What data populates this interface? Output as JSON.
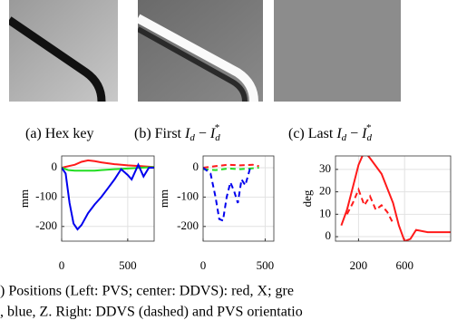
{
  "subcaptions": [
    {
      "text": "(a) Hex key"
    },
    {
      "text": "(b) First",
      "symbol": "I",
      "sub": "d",
      "op": "−",
      "sup": "*"
    },
    {
      "text": "(c) Last",
      "symbol": "I",
      "sub": "d",
      "op": "−",
      "sup": "*"
    }
  ],
  "chart_data": [
    {
      "type": "line",
      "y_label": "mm",
      "xlim": [
        0,
        700
      ],
      "ylim": [
        -250,
        40
      ],
      "xticks": [
        0,
        500
      ],
      "yticks": [
        -200,
        -100,
        0
      ],
      "grid": true,
      "series": [
        {
          "color": "#ff1a1a",
          "dashed": false,
          "x": [
            0,
            50,
            100,
            150,
            200,
            250,
            300,
            400,
            500,
            600,
            700
          ],
          "values": [
            0,
            5,
            10,
            20,
            25,
            22,
            18,
            12,
            8,
            5,
            2
          ]
        },
        {
          "color": "#22dd22",
          "dashed": false,
          "x": [
            0,
            50,
            100,
            150,
            200,
            250,
            300,
            400,
            500,
            600,
            700
          ],
          "values": [
            0,
            -8,
            -10,
            -10,
            -10,
            -10,
            -8,
            -5,
            -3,
            0,
            2
          ]
        },
        {
          "color": "#0000ee",
          "dashed": false,
          "x": [
            0,
            30,
            60,
            90,
            120,
            150,
            200,
            250,
            300,
            350,
            400,
            450,
            500,
            530,
            580,
            620,
            660,
            700
          ],
          "values": [
            0,
            -20,
            -120,
            -190,
            -210,
            -195,
            -155,
            -125,
            -100,
            -70,
            -40,
            -5,
            -25,
            -40,
            10,
            -30,
            0,
            0
          ]
        }
      ]
    },
    {
      "type": "line",
      "y_label": "mm",
      "xlim": [
        0,
        570
      ],
      "ylim": [
        -250,
        40
      ],
      "xticks": [
        0,
        500
      ],
      "yticks": [
        -200,
        -100,
        0
      ],
      "grid": true,
      "series": [
        {
          "color": "#ff1a1a",
          "dashed": true,
          "x": [
            0,
            100,
            200,
            300,
            400,
            450
          ],
          "values": [
            0,
            5,
            10,
            8,
            10,
            5
          ]
        },
        {
          "color": "#22dd22",
          "dashed": true,
          "x": [
            0,
            100,
            200,
            300,
            400,
            450
          ],
          "values": [
            -5,
            -8,
            -3,
            -5,
            -2,
            0
          ]
        },
        {
          "color": "#0000ee",
          "dashed": true,
          "x": [
            0,
            60,
            100,
            130,
            160,
            190,
            220,
            250,
            280,
            310,
            340,
            380
          ],
          "values": [
            0,
            -20,
            -100,
            -175,
            -180,
            -100,
            -50,
            -80,
            -120,
            -40,
            -60,
            0
          ]
        }
      ]
    },
    {
      "type": "line",
      "y_label": "deg",
      "xlim": [
        0,
        1000
      ],
      "ylim": [
        -2,
        36
      ],
      "xticks": [
        200,
        600
      ],
      "yticks": [
        0,
        10,
        20,
        30
      ],
      "grid": true,
      "series": [
        {
          "color": "#ff1a1a",
          "dashed": false,
          "x": [
            50,
            100,
            150,
            200,
            250,
            300,
            400,
            500,
            550,
            600,
            650,
            700,
            800,
            1000
          ],
          "values": [
            5,
            12,
            22,
            32,
            38,
            35,
            28,
            15,
            5,
            -2,
            -1,
            3,
            2,
            2
          ]
        },
        {
          "color": "#ff1a1a",
          "dashed": true,
          "x": [
            100,
            150,
            200,
            250,
            300,
            350,
            400,
            450,
            500
          ],
          "values": [
            10,
            15,
            21,
            14,
            18,
            12,
            14,
            11,
            6
          ]
        }
      ]
    }
  ],
  "figure_caption": [
    ") Positions (Left: PVS; center: DDVS): red, X; gre",
    ", blue, Z. Right: DDVS (dashed) and PVS orientatio"
  ]
}
